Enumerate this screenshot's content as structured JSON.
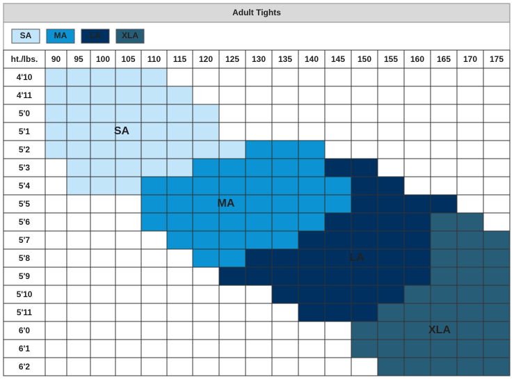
{
  "title": "Adult Tights",
  "legend": [
    {
      "label": "SA",
      "color": "#c3e5fa",
      "text_color": "#1f3a4d"
    },
    {
      "label": "MA",
      "color": "#0b93d3",
      "text_color": "#0b2a40"
    },
    {
      "label": "LA",
      "color": "#00305f",
      "text_color": "#ffffff"
    },
    {
      "label": "XLA",
      "color": "#285d78",
      "text_color": "#ffffff"
    }
  ],
  "table": {
    "header": [
      "ht./lbs.",
      "90",
      "95",
      "100",
      "105",
      "110",
      "115",
      "120",
      "125",
      "130",
      "135",
      "140",
      "145",
      "150",
      "155",
      "160",
      "165",
      "170",
      "175"
    ],
    "rows": [
      {
        "label": "4'10",
        "cells": [
          "SA",
          "SA",
          "SA",
          "SA",
          "SA",
          null,
          null,
          null,
          null,
          null,
          null,
          null,
          null,
          null,
          null,
          null,
          null,
          null
        ]
      },
      {
        "label": "4'11",
        "cells": [
          "SA",
          "SA",
          "SA",
          "SA",
          "SA",
          "SA",
          null,
          null,
          null,
          null,
          null,
          null,
          null,
          null,
          null,
          null,
          null,
          null
        ]
      },
      {
        "label": "5'0",
        "cells": [
          "SA",
          "SA",
          "SA",
          "SA",
          "SA",
          "SA",
          "SA",
          null,
          null,
          null,
          null,
          null,
          null,
          null,
          null,
          null,
          null,
          null
        ]
      },
      {
        "label": "5'1",
        "cells": [
          "SA",
          "SA",
          "SA",
          "SA",
          "SA",
          "SA",
          "SA",
          null,
          null,
          null,
          null,
          null,
          null,
          null,
          null,
          null,
          null,
          null
        ]
      },
      {
        "label": "5'2",
        "cells": [
          "SA",
          "SA",
          "SA",
          "SA",
          "SA",
          "SA",
          "SA",
          "SA",
          "MA",
          "MA",
          "MA",
          null,
          null,
          null,
          null,
          null,
          null,
          null
        ]
      },
      {
        "label": "5'3",
        "cells": [
          null,
          "SA",
          "SA",
          "SA",
          "SA",
          "SA",
          "MA",
          "MA",
          "MA",
          "MA",
          "MA",
          "LA",
          "LA",
          null,
          null,
          null,
          null,
          null
        ]
      },
      {
        "label": "5'4",
        "cells": [
          null,
          "SA",
          "SA",
          "SA",
          "MA",
          "MA",
          "MA",
          "MA",
          "MA",
          "MA",
          "MA",
          "MA",
          "LA",
          "LA",
          null,
          null,
          null,
          null
        ]
      },
      {
        "label": "5'5",
        "cells": [
          null,
          null,
          null,
          null,
          "MA",
          "MA",
          "MA",
          "MA",
          "MA",
          "MA",
          "MA",
          "MA",
          "LA",
          "LA",
          "LA",
          "LA",
          null,
          null
        ]
      },
      {
        "label": "5'6",
        "cells": [
          null,
          null,
          null,
          null,
          "MA",
          "MA",
          "MA",
          "MA",
          "MA",
          "MA",
          "MA",
          "LA",
          "LA",
          "LA",
          "LA",
          "XLA",
          "XLA",
          null
        ]
      },
      {
        "label": "5'7",
        "cells": [
          null,
          null,
          null,
          null,
          null,
          "MA",
          "MA",
          "MA",
          "MA",
          "MA",
          "LA",
          "LA",
          "LA",
          "LA",
          "LA",
          "XLA",
          "XLA",
          "XLA"
        ]
      },
      {
        "label": "5'8",
        "cells": [
          null,
          null,
          null,
          null,
          null,
          null,
          "MA",
          "MA",
          "LA",
          "LA",
          "LA",
          "LA",
          "LA",
          "LA",
          "LA",
          "XLA",
          "XLA",
          "XLA"
        ]
      },
      {
        "label": "5'9",
        "cells": [
          null,
          null,
          null,
          null,
          null,
          null,
          null,
          "LA",
          "LA",
          "LA",
          "LA",
          "LA",
          "LA",
          "LA",
          "LA",
          "XLA",
          "XLA",
          "XLA"
        ]
      },
      {
        "label": "5'10",
        "cells": [
          null,
          null,
          null,
          null,
          null,
          null,
          null,
          null,
          null,
          "LA",
          "LA",
          "LA",
          "LA",
          "LA",
          "XLA",
          "XLA",
          "XLA",
          "XLA"
        ]
      },
      {
        "label": "5'11",
        "cells": [
          null,
          null,
          null,
          null,
          null,
          null,
          null,
          null,
          null,
          null,
          "LA",
          "LA",
          "LA",
          "XLA",
          "XLA",
          "XLA",
          "XLA",
          "XLA"
        ]
      },
      {
        "label": "6'0",
        "cells": [
          null,
          null,
          null,
          null,
          null,
          null,
          null,
          null,
          null,
          null,
          null,
          null,
          "XLA",
          "XLA",
          "XLA",
          "XLA",
          "XLA",
          "XLA"
        ]
      },
      {
        "label": "6'1",
        "cells": [
          null,
          null,
          null,
          null,
          null,
          null,
          null,
          null,
          null,
          null,
          null,
          null,
          "XLA",
          "XLA",
          "XLA",
          "XLA",
          "XLA",
          "XLA"
        ]
      },
      {
        "label": "6'2",
        "cells": [
          null,
          null,
          null,
          null,
          null,
          null,
          null,
          null,
          null,
          null,
          null,
          null,
          null,
          "XLA",
          "XLA",
          "XLA",
          "XLA",
          "XLA"
        ]
      }
    ]
  },
  "region_labels": [
    "SA",
    "MA",
    "LA",
    "XLA"
  ]
}
